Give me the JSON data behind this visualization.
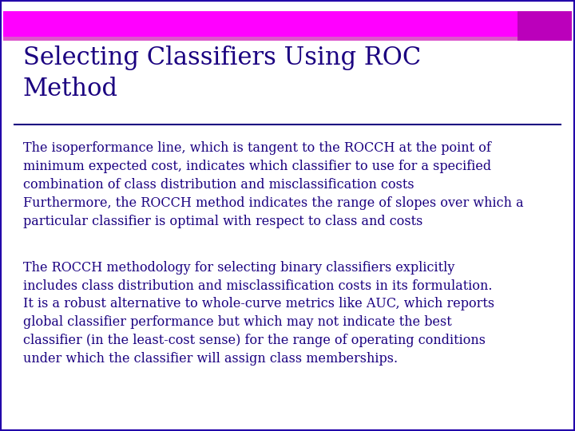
{
  "title": "Selecting Classifiers Using ROC\nMethod",
  "title_color": "#1a0080",
  "title_fontsize": 22,
  "bg_color": "#ffffff",
  "header_bar_color": "#ff00ff",
  "header_bar2_color": "#dd55cc",
  "header_border_color": "#2200aa",
  "corner_box_color": "#bb00bb",
  "divider_color": "#1a0080",
  "text_color": "#1a0080",
  "body_fontsize": 11.5,
  "para1": "The isoperformance line, which is tangent to the ROCCH at the point of\nminimum expected cost, indicates which classifier to use for a specified\ncombination of class distribution and misclassification costs\nFurthermore, the ROCCH method indicates the range of slopes over which a\nparticular classifier is optimal with respect to class and costs",
  "para2": "The ROCCH methodology for selecting binary classifiers explicitly\nincludes class distribution and misclassification costs in its formulation.\nIt is a robust alternative to whole-curve metrics like AUC, which reports\nglobal classifier performance but which may not indicate the best\nclassifier (in the least-cost sense) for the range of operating conditions\nunder which the classifier will assign class memberships."
}
